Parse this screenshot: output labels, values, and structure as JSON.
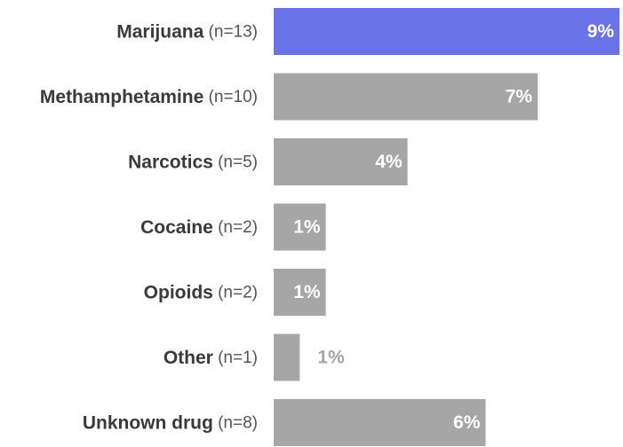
{
  "chart_data": {
    "type": "bar",
    "orientation": "horizontal",
    "categories": [
      {
        "name": "Marijuana",
        "n": "(n=13)"
      },
      {
        "name": "Methamphetamine",
        "n": "(n=10)"
      },
      {
        "name": "Narcotics",
        "n": "(n=5)"
      },
      {
        "name": "Cocaine",
        "n": "(n=2)"
      },
      {
        "name": "Opioids",
        "n": "(n=2)"
      },
      {
        "name": "Other",
        "n": "(n=1)"
      },
      {
        "name": "Unknown drug",
        "n": "(n=8)"
      }
    ],
    "values": [
      9,
      7,
      4,
      1,
      1,
      1,
      6
    ],
    "bar_lengths_percent": [
      9.3,
      7.1,
      3.6,
      1.4,
      1.4,
      0.7,
      5.7
    ],
    "labels": [
      "9%",
      "7%",
      "4%",
      "1%",
      "1%",
      "1%",
      "6%"
    ],
    "highlight_index": 0,
    "colors": {
      "highlight": "#6b73e8",
      "default": "#a6a6a6",
      "label_inside": "#ffffff",
      "label_outside": "#a6a6a6"
    },
    "xlim": [
      0,
      9.3
    ],
    "title": "",
    "xlabel": "",
    "ylabel": "",
    "grid": false,
    "legend": "none"
  }
}
